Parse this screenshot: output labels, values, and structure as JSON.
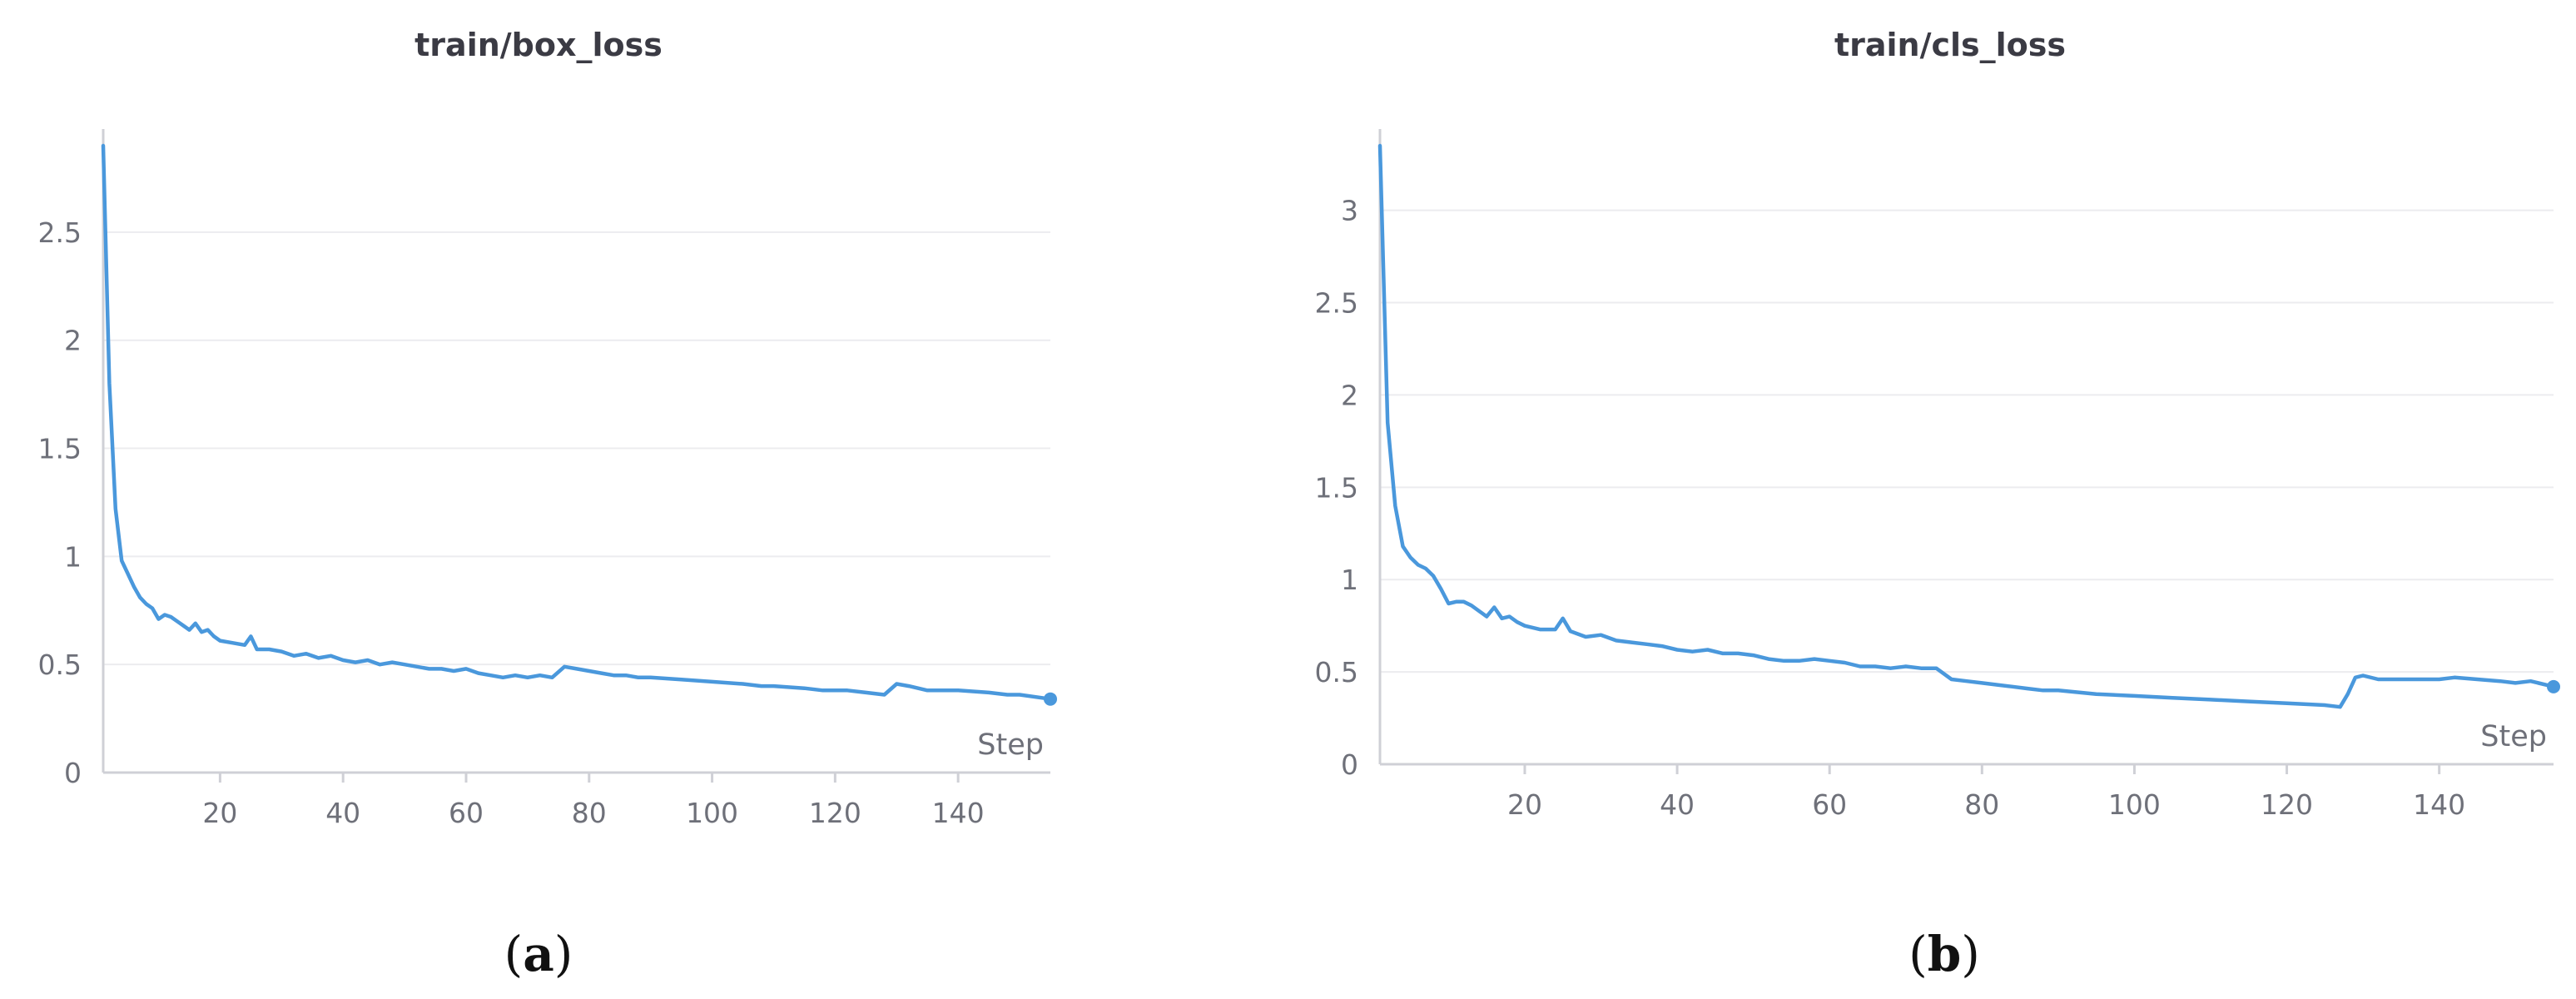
{
  "chart_data": [
    {
      "type": "line",
      "panel_label": "a",
      "title": "train/box_loss",
      "xlabel": "Step",
      "ylabel": "",
      "xlim": [
        1,
        155
      ],
      "ylim": [
        0,
        2.9
      ],
      "xticks": [
        20,
        40,
        60,
        80,
        100,
        120,
        140
      ],
      "yticks": [
        0,
        0.5,
        1,
        1.5,
        2,
        2.5
      ],
      "ytick_labels": [
        "0",
        "0.5",
        "1",
        "1.5",
        "2",
        "2.5"
      ],
      "grid": true,
      "color": "#4a98dc",
      "series": [
        {
          "x": [
            1,
            2,
            3,
            4,
            5,
            6,
            7,
            8,
            9,
            10,
            11,
            12,
            13,
            14,
            15,
            16,
            17,
            18,
            19,
            20,
            22,
            24,
            25,
            26,
            28,
            30,
            32,
            34,
            36,
            38,
            40,
            42,
            44,
            46,
            48,
            50,
            52,
            54,
            56,
            58,
            60,
            62,
            64,
            66,
            68,
            70,
            72,
            74,
            76,
            78,
            80,
            82,
            84,
            86,
            88,
            90,
            95,
            100,
            105,
            108,
            110,
            115,
            118,
            120,
            122,
            125,
            128,
            130,
            132,
            135,
            140,
            145,
            148,
            150,
            155
          ],
          "y": [
            2.9,
            1.8,
            1.22,
            0.98,
            0.92,
            0.86,
            0.81,
            0.78,
            0.76,
            0.71,
            0.73,
            0.72,
            0.7,
            0.68,
            0.66,
            0.69,
            0.65,
            0.66,
            0.63,
            0.61,
            0.6,
            0.59,
            0.63,
            0.57,
            0.57,
            0.56,
            0.54,
            0.55,
            0.53,
            0.54,
            0.52,
            0.51,
            0.52,
            0.5,
            0.51,
            0.5,
            0.49,
            0.48,
            0.48,
            0.47,
            0.48,
            0.46,
            0.45,
            0.44,
            0.45,
            0.44,
            0.45,
            0.44,
            0.49,
            0.48,
            0.47,
            0.46,
            0.45,
            0.45,
            0.44,
            0.44,
            0.43,
            0.42,
            0.41,
            0.4,
            0.4,
            0.39,
            0.38,
            0.38,
            0.38,
            0.37,
            0.36,
            0.41,
            0.4,
            0.38,
            0.38,
            0.37,
            0.36,
            0.36,
            0.34
          ]
        }
      ]
    },
    {
      "type": "line",
      "panel_label": "b",
      "title": "train/cls_loss",
      "xlabel": "Step",
      "ylabel": "",
      "xlim": [
        1,
        155
      ],
      "ylim": [
        0,
        3.35
      ],
      "xticks": [
        20,
        40,
        60,
        80,
        100,
        120,
        140
      ],
      "yticks": [
        0,
        0.5,
        1,
        1.5,
        2,
        2.5,
        3
      ],
      "ytick_labels": [
        "0",
        "0.5",
        "1",
        "1.5",
        "2",
        "2.5",
        "3"
      ],
      "grid": true,
      "color": "#4a98dc",
      "series": [
        {
          "x": [
            1,
            2,
            3,
            4,
            5,
            6,
            7,
            8,
            9,
            10,
            11,
            12,
            13,
            14,
            15,
            16,
            17,
            18,
            19,
            20,
            22,
            24,
            25,
            26,
            28,
            30,
            32,
            34,
            36,
            38,
            40,
            42,
            44,
            46,
            48,
            50,
            52,
            54,
            56,
            58,
            60,
            62,
            64,
            66,
            68,
            70,
            72,
            74,
            76,
            78,
            80,
            82,
            84,
            86,
            88,
            90,
            95,
            100,
            105,
            110,
            115,
            120,
            125,
            127,
            128,
            129,
            130,
            132,
            135,
            140,
            142,
            145,
            148,
            150,
            152,
            155
          ],
          "y": [
            3.35,
            1.85,
            1.4,
            1.18,
            1.12,
            1.08,
            1.06,
            1.02,
            0.95,
            0.87,
            0.88,
            0.88,
            0.86,
            0.83,
            0.8,
            0.85,
            0.79,
            0.8,
            0.77,
            0.75,
            0.73,
            0.73,
            0.79,
            0.72,
            0.69,
            0.7,
            0.67,
            0.66,
            0.65,
            0.64,
            0.62,
            0.61,
            0.62,
            0.6,
            0.6,
            0.59,
            0.57,
            0.56,
            0.56,
            0.57,
            0.56,
            0.55,
            0.53,
            0.53,
            0.52,
            0.53,
            0.52,
            0.52,
            0.46,
            0.45,
            0.44,
            0.43,
            0.42,
            0.41,
            0.4,
            0.4,
            0.38,
            0.37,
            0.36,
            0.35,
            0.34,
            0.33,
            0.32,
            0.31,
            0.38,
            0.47,
            0.48,
            0.46,
            0.46,
            0.46,
            0.47,
            0.46,
            0.45,
            0.44,
            0.45,
            0.42
          ]
        }
      ]
    }
  ]
}
